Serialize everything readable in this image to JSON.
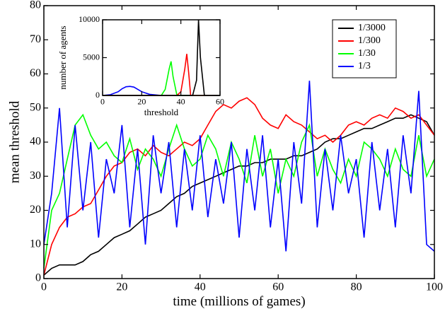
{
  "chart_data": [
    {
      "type": "line",
      "xlabel": "time (millions of games)",
      "ylabel": "mean threshold",
      "xlim": [
        0,
        100
      ],
      "ylim": [
        0,
        80
      ],
      "xticks": [
        0,
        20,
        40,
        60,
        80,
        100
      ],
      "yticks": [
        0,
        10,
        20,
        30,
        40,
        50,
        60,
        70,
        80
      ],
      "legend": "upper-right",
      "x": [
        0,
        2,
        4,
        6,
        8,
        10,
        12,
        14,
        16,
        18,
        20,
        22,
        24,
        26,
        28,
        30,
        32,
        34,
        36,
        38,
        40,
        42,
        44,
        46,
        48,
        50,
        52,
        54,
        56,
        58,
        60,
        62,
        64,
        66,
        68,
        70,
        72,
        74,
        76,
        78,
        80,
        82,
        84,
        86,
        88,
        90,
        92,
        94,
        96,
        98,
        100
      ],
      "series": [
        {
          "name": "1/3000",
          "color": "#000000",
          "values": [
            1,
            3,
            4,
            4,
            4,
            5,
            7,
            8,
            10,
            12,
            13,
            14,
            16,
            18,
            19,
            20,
            22,
            24,
            25,
            27,
            28,
            29,
            30,
            31,
            32,
            33,
            33,
            34,
            34,
            35,
            35,
            35,
            36,
            36,
            37,
            38,
            40,
            41,
            41,
            42,
            43,
            44,
            44,
            45,
            46,
            47,
            47,
            48,
            47,
            46,
            42
          ]
        },
        {
          "name": "1/300",
          "color": "#ff0000",
          "values": [
            1,
            10,
            15,
            18,
            19,
            21,
            22,
            26,
            30,
            33,
            34,
            37,
            38,
            36,
            39,
            37,
            36,
            38,
            40,
            39,
            41,
            45,
            49,
            51,
            50,
            52,
            53,
            51,
            47,
            45,
            44,
            48,
            46,
            45,
            43,
            41,
            42,
            40,
            42,
            45,
            46,
            45,
            47,
            48,
            47,
            50,
            49,
            47,
            48,
            45,
            42
          ]
        },
        {
          "name": "1/30",
          "color": "#00ff00",
          "values": [
            3,
            20,
            25,
            35,
            45,
            48,
            42,
            38,
            40,
            36,
            34,
            41,
            32,
            38,
            35,
            30,
            38,
            45,
            38,
            33,
            35,
            42,
            38,
            30,
            40,
            35,
            28,
            42,
            30,
            38,
            25,
            35,
            30,
            40,
            45,
            30,
            38,
            32,
            28,
            35,
            30,
            40,
            38,
            35,
            30,
            38,
            32,
            30,
            42,
            30,
            35
          ]
        },
        {
          "name": "1/3",
          "color": "#0000ff",
          "values": [
            10,
            25,
            50,
            15,
            45,
            20,
            40,
            12,
            35,
            25,
            45,
            15,
            38,
            10,
            42,
            25,
            40,
            15,
            38,
            20,
            42,
            18,
            35,
            22,
            40,
            12,
            38,
            20,
            42,
            15,
            35,
            8,
            40,
            22,
            58,
            15,
            38,
            20,
            42,
            25,
            35,
            12,
            40,
            20,
            38,
            15,
            42,
            25,
            55,
            10,
            8
          ]
        }
      ]
    },
    {
      "type": "line",
      "xlabel": "threshold",
      "ylabel": "number of agents",
      "xlim": [
        0,
        60
      ],
      "ylim": [
        0,
        10000
      ],
      "xticks": [
        0,
        20,
        40,
        60
      ],
      "yticks": [
        0,
        5000,
        10000
      ],
      "series": [
        {
          "color": "#0000ff",
          "x": [
            0,
            4,
            8,
            10,
            12,
            14,
            16,
            18,
            20,
            24,
            30,
            60
          ],
          "values": [
            0,
            100,
            500,
            900,
            1150,
            1200,
            1100,
            800,
            500,
            150,
            0,
            0
          ]
        },
        {
          "color": "#00ff00",
          "x": [
            0,
            30,
            32,
            34,
            35,
            36,
            38,
            60
          ],
          "values": [
            0,
            0,
            800,
            3500,
            4500,
            2500,
            0,
            0
          ]
        },
        {
          "color": "#ff0000",
          "x": [
            0,
            38,
            40,
            42,
            43,
            44,
            45,
            60
          ],
          "values": [
            0,
            0,
            500,
            3500,
            5500,
            3000,
            0,
            0
          ]
        },
        {
          "color": "#000000",
          "x": [
            0,
            46,
            48,
            49,
            50,
            52,
            60
          ],
          "values": [
            0,
            0,
            2000,
            10000,
            5000,
            0,
            0
          ]
        }
      ]
    }
  ]
}
